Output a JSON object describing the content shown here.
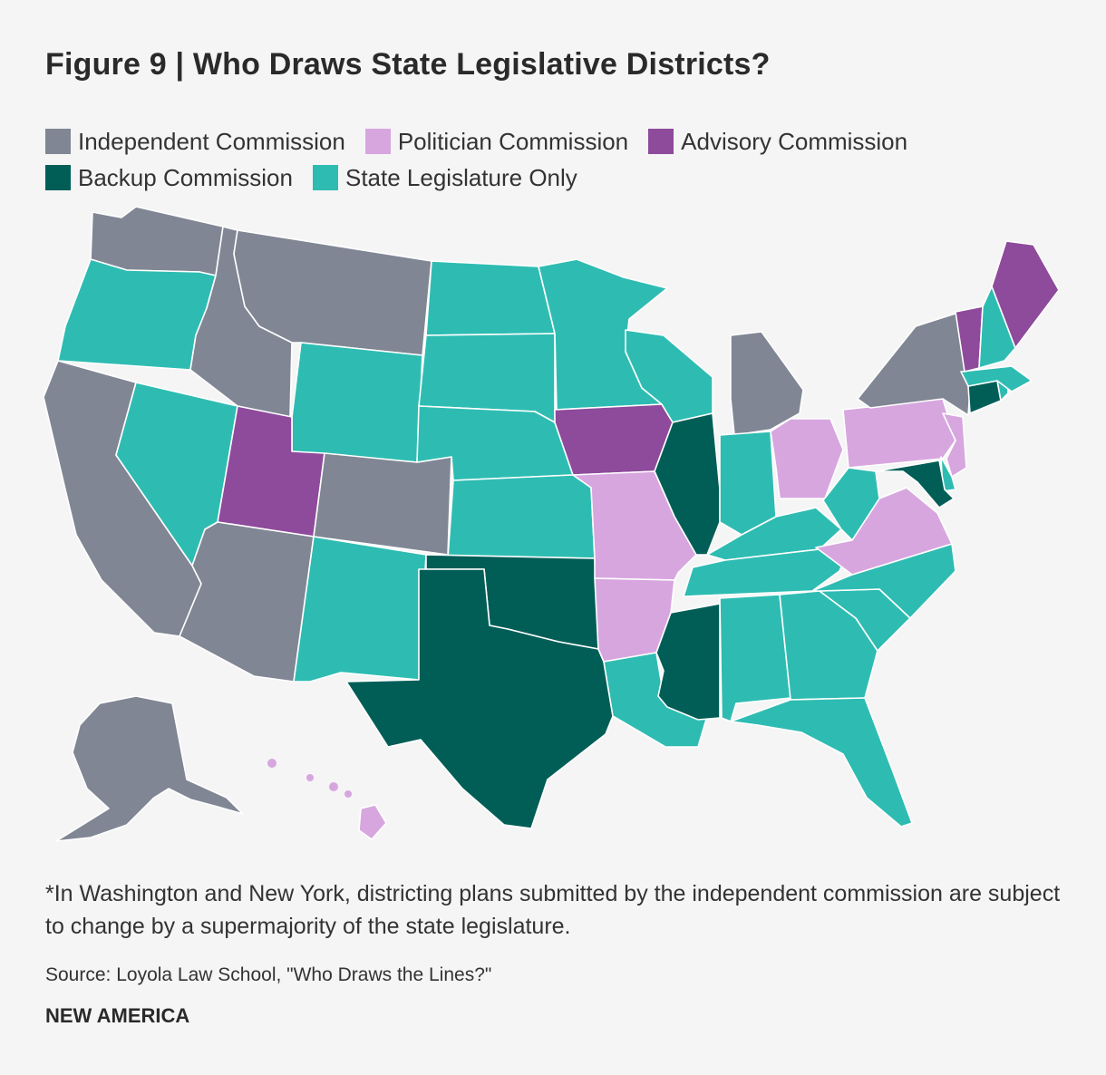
{
  "title": "Figure 9 | Who Draws State Legislative Districts?",
  "legend": [
    {
      "label": "Independent Commission",
      "color": "#808694"
    },
    {
      "label": "Politician Commission",
      "color": "#d7a6df"
    },
    {
      "label": "Advisory Commission",
      "color": "#8e4a9b"
    },
    {
      "label": "Backup Commission",
      "color": "#015e57"
    },
    {
      "label": "State Legislature Only",
      "color": "#2ebcb2"
    }
  ],
  "map_data": {
    "states": [
      {
        "state": "WA",
        "category": "Independent Commission"
      },
      {
        "state": "OR",
        "category": "State Legislature Only"
      },
      {
        "state": "CA",
        "category": "Independent Commission"
      },
      {
        "state": "NV",
        "category": "State Legislature Only"
      },
      {
        "state": "ID",
        "category": "Independent Commission"
      },
      {
        "state": "MT",
        "category": "Independent Commission"
      },
      {
        "state": "WY",
        "category": "State Legislature Only"
      },
      {
        "state": "UT",
        "category": "Advisory Commission"
      },
      {
        "state": "AZ",
        "category": "Independent Commission"
      },
      {
        "state": "CO",
        "category": "Independent Commission"
      },
      {
        "state": "NM",
        "category": "State Legislature Only"
      },
      {
        "state": "ND",
        "category": "State Legislature Only"
      },
      {
        "state": "SD",
        "category": "State Legislature Only"
      },
      {
        "state": "NE",
        "category": "State Legislature Only"
      },
      {
        "state": "KS",
        "category": "State Legislature Only"
      },
      {
        "state": "OK",
        "category": "Backup Commission"
      },
      {
        "state": "TX",
        "category": "Backup Commission"
      },
      {
        "state": "MN",
        "category": "State Legislature Only"
      },
      {
        "state": "IA",
        "category": "Advisory Commission"
      },
      {
        "state": "MO",
        "category": "Politician Commission"
      },
      {
        "state": "AR",
        "category": "Politician Commission"
      },
      {
        "state": "LA",
        "category": "State Legislature Only"
      },
      {
        "state": "WI",
        "category": "State Legislature Only"
      },
      {
        "state": "IL",
        "category": "Backup Commission"
      },
      {
        "state": "MS",
        "category": "Backup Commission"
      },
      {
        "state": "MI",
        "category": "Independent Commission"
      },
      {
        "state": "IN",
        "category": "State Legislature Only"
      },
      {
        "state": "KY",
        "category": "State Legislature Only"
      },
      {
        "state": "TN",
        "category": "State Legislature Only"
      },
      {
        "state": "AL",
        "category": "State Legislature Only"
      },
      {
        "state": "OH",
        "category": "Politician Commission"
      },
      {
        "state": "GA",
        "category": "State Legislature Only"
      },
      {
        "state": "FL",
        "category": "State Legislature Only"
      },
      {
        "state": "SC",
        "category": "State Legislature Only"
      },
      {
        "state": "NC",
        "category": "State Legislature Only"
      },
      {
        "state": "VA",
        "category": "Politician Commission"
      },
      {
        "state": "WV",
        "category": "State Legislature Only"
      },
      {
        "state": "PA",
        "category": "Politician Commission"
      },
      {
        "state": "NY",
        "category": "Independent Commission"
      },
      {
        "state": "NJ",
        "category": "Politician Commission"
      },
      {
        "state": "DE",
        "category": "State Legislature Only"
      },
      {
        "state": "MD",
        "category": "Backup Commission"
      },
      {
        "state": "CT",
        "category": "Backup Commission"
      },
      {
        "state": "RI",
        "category": "State Legislature Only"
      },
      {
        "state": "MA",
        "category": "State Legislature Only"
      },
      {
        "state": "VT",
        "category": "Advisory Commission"
      },
      {
        "state": "NH",
        "category": "State Legislature Only"
      },
      {
        "state": "ME",
        "category": "Advisory Commission"
      },
      {
        "state": "AK",
        "category": "Independent Commission"
      },
      {
        "state": "HI",
        "category": "Politician Commission"
      }
    ]
  },
  "footnote": "*In Washington and New York, districting plans submitted by the independent commission are subject to change by a supermajority of the state legislature.",
  "source": "Source: Loyola Law School, \"Who Draws the Lines?\"",
  "brand": "NEW AMERICA"
}
